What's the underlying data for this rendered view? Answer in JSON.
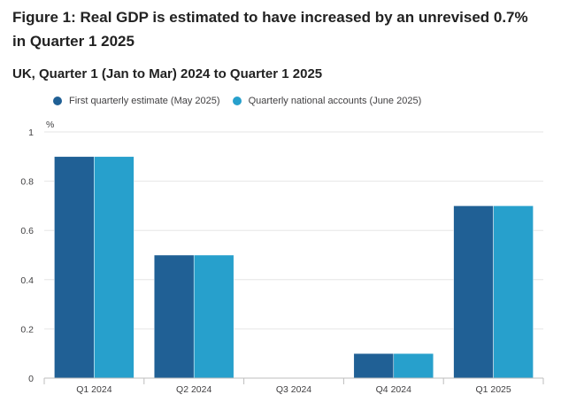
{
  "title": "Figure 1: Real GDP is estimated to have increased by an unrevised 0.7% in Quarter 1 2025",
  "subtitle": "UK, Quarter 1 (Jan to Mar) 2024 to Quarter 1 2025",
  "legend": {
    "series_0": "First quarterly estimate (May 2025)",
    "series_1": "Quarterly national accounts (June 2025)"
  },
  "colors": {
    "series_0": "#206095",
    "series_1": "#27a0cc",
    "grid": "#e6e6e6",
    "axis": "#bdbdbd",
    "text": "#414042"
  },
  "chart_data": {
    "type": "bar",
    "categories": [
      "Q1 2024",
      "Q2 2024",
      "Q3 2024",
      "Q4 2024",
      "Q1 2025"
    ],
    "series": [
      {
        "name": "First quarterly estimate (May 2025)",
        "values": [
          0.9,
          0.5,
          0.0,
          0.1,
          0.7
        ]
      },
      {
        "name": "Quarterly national accounts (June 2025)",
        "values": [
          0.9,
          0.5,
          0.0,
          0.1,
          0.7
        ]
      }
    ],
    "title": "Figure 1: Real GDP is estimated to have increased by an unrevised 0.7% in Quarter 1 2025",
    "subtitle": "UK, Quarter 1 (Jan to Mar) 2024 to Quarter 1 2025",
    "ylabel": "%",
    "xlabel": "",
    "ylim": [
      0,
      1
    ],
    "yticks": [
      0,
      0.2,
      0.4,
      0.6,
      0.8,
      1
    ],
    "ytick_labels": [
      "0",
      "0.2",
      "0.4",
      "0.6",
      "0.8",
      "1"
    ],
    "grid": true,
    "legend_position": "top-left"
  }
}
